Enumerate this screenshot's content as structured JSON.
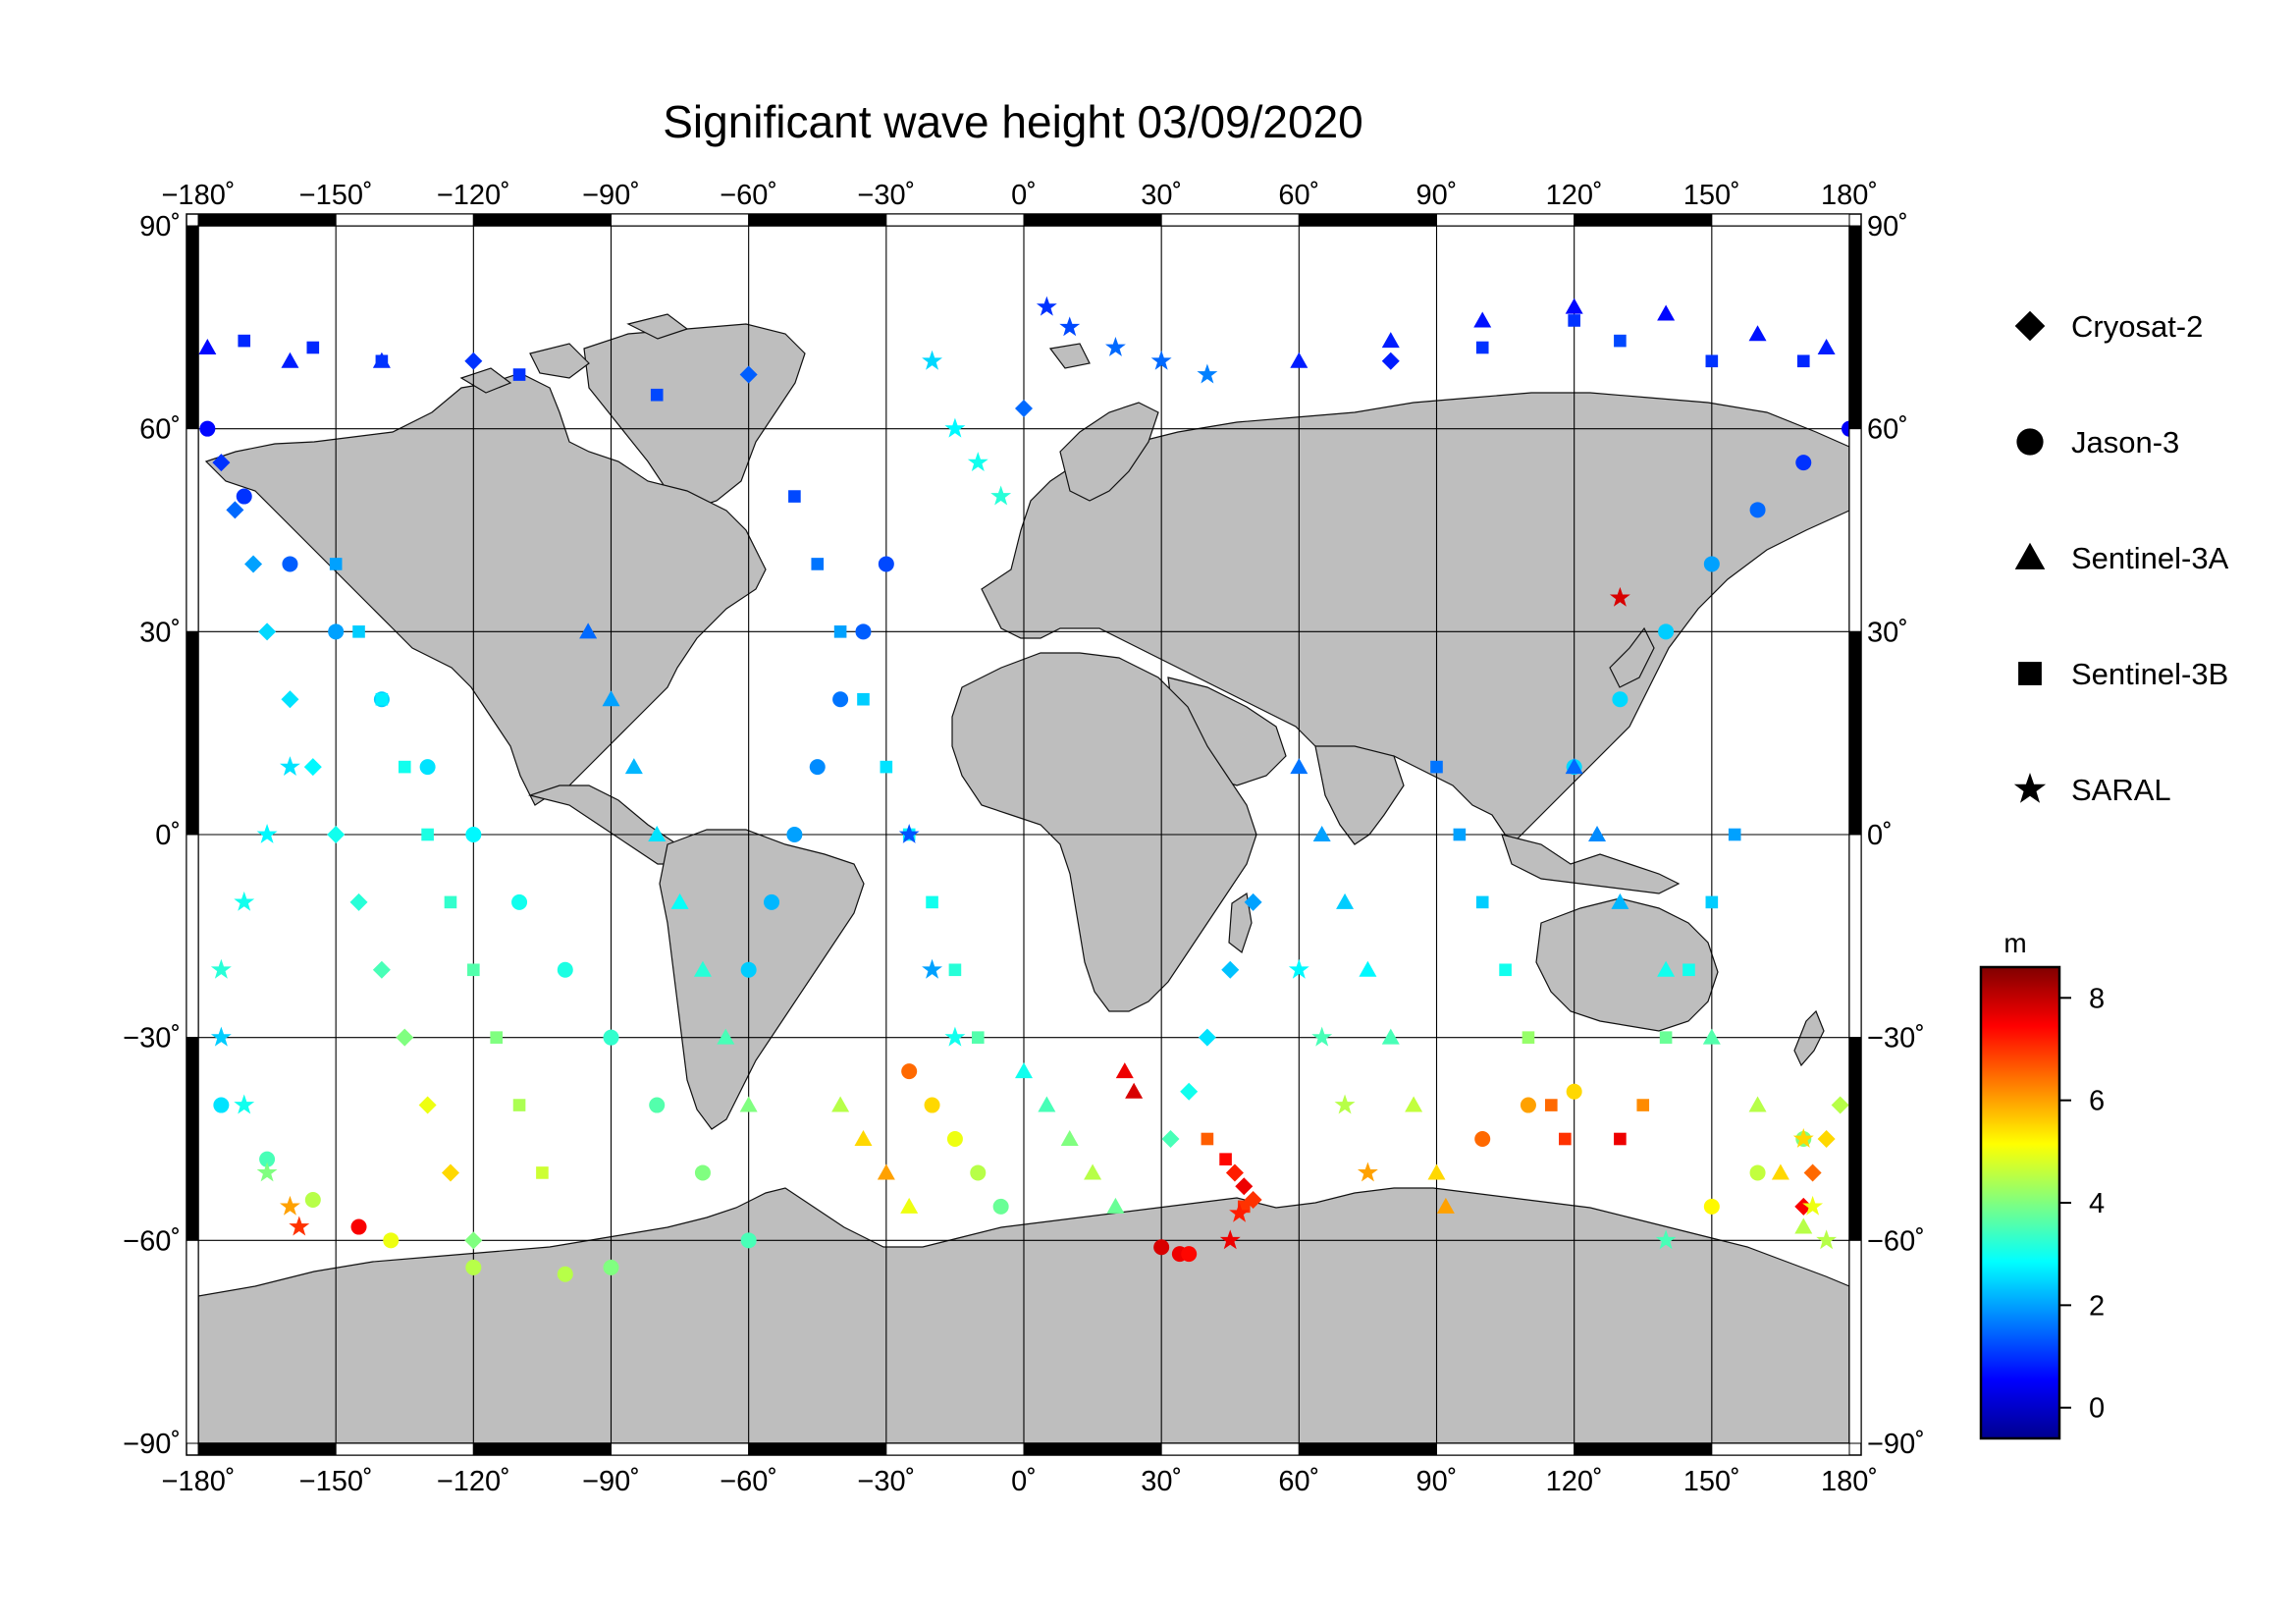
{
  "title": "Significant wave height 03/09/2020",
  "map": {
    "projection": "equirectangular",
    "lon_range": [
      -180,
      180
    ],
    "lat_range": [
      -90,
      90
    ],
    "lon_ticks": [
      -180,
      -150,
      -120,
      -90,
      -60,
      -30,
      0,
      30,
      60,
      90,
      120,
      150,
      180
    ],
    "lat_ticks": [
      90,
      60,
      30,
      0,
      -30,
      -60,
      -90
    ],
    "lon_tick_labels": [
      "−180˚",
      "−150˚",
      "−120˚",
      "−90˚",
      "−60˚",
      "−30˚",
      "0˚",
      "30˚",
      "60˚",
      "90˚",
      "120˚",
      "150˚",
      "180˚"
    ],
    "lat_tick_labels": [
      "90˚",
      "60˚",
      "30˚",
      "0˚",
      "−30˚",
      "−60˚",
      "−90˚"
    ],
    "grid": true,
    "land_color": "#bebebe",
    "ocean_color": "#ffffff",
    "frame_style": "alternating black/white 30-degree bands"
  },
  "legend": {
    "placement": "right",
    "items": [
      {
        "label": "Cryosat-2",
        "symbol": "diamond"
      },
      {
        "label": "Jason-3",
        "symbol": "circle"
      },
      {
        "label": "Sentinel-3A",
        "symbol": "triangle"
      },
      {
        "label": "Sentinel-3B",
        "symbol": "square"
      },
      {
        "label": "SARAL",
        "symbol": "star"
      }
    ]
  },
  "colorbar": {
    "unit": "m",
    "range": [
      -0.6,
      8.6
    ],
    "ticks": [
      0,
      2,
      4,
      6,
      8
    ],
    "tick_labels": [
      "0",
      "2",
      "4",
      "6",
      "8"
    ],
    "colormap": "jet",
    "placement": "right, bottom"
  },
  "chart_data": {
    "type": "scatter",
    "title": "Significant wave height 03/09/2020",
    "xlabel": "",
    "ylabel": "",
    "xlim": [
      -180,
      180
    ],
    "ylim": [
      -90,
      90
    ],
    "value_unit": "m",
    "color_scale": "jet",
    "series": [
      {
        "name": "Cryosat-2",
        "marker": "diamond",
        "points": [
          [
            -175,
            55,
            1.0
          ],
          [
            -172,
            48,
            1.5
          ],
          [
            -168,
            40,
            2.0
          ],
          [
            -165,
            30,
            2.5
          ],
          [
            -160,
            20,
            2.6
          ],
          [
            -155,
            10,
            2.8
          ],
          [
            -150,
            0,
            3.0
          ],
          [
            -145,
            -10,
            3.2
          ],
          [
            -140,
            -20,
            3.5
          ],
          [
            -135,
            -30,
            4.0
          ],
          [
            -130,
            -40,
            5.0
          ],
          [
            -125,
            -50,
            5.5
          ],
          [
            -120,
            -60,
            4.0
          ],
          [
            32,
            -45,
            3.5
          ],
          [
            36,
            -38,
            3.0
          ],
          [
            40,
            -30,
            2.6
          ],
          [
            45,
            -20,
            2.3
          ],
          [
            50,
            -10,
            2.0
          ],
          [
            46,
            -50,
            7.2
          ],
          [
            48,
            -52,
            7.6
          ],
          [
            50,
            -54,
            7.0
          ],
          [
            170,
            -55,
            7.5
          ],
          [
            172,
            -50,
            6.5
          ],
          [
            175,
            -45,
            5.5
          ],
          [
            178,
            -40,
            4.5
          ],
          [
            -120,
            70,
            1.0
          ],
          [
            -60,
            68,
            1.4
          ],
          [
            0,
            63,
            1.5
          ],
          [
            80,
            70,
            0.8
          ]
        ]
      },
      {
        "name": "Jason-3",
        "marker": "circle",
        "points": [
          [
            -178,
            60,
            0.6
          ],
          [
            -170,
            50,
            1.0
          ],
          [
            -160,
            40,
            1.4
          ],
          [
            -150,
            30,
            2.0
          ],
          [
            -140,
            20,
            2.4
          ],
          [
            -130,
            10,
            2.6
          ],
          [
            -120,
            0,
            2.8
          ],
          [
            -110,
            -10,
            3.0
          ],
          [
            -100,
            -20,
            3.1
          ],
          [
            -90,
            -30,
            3.3
          ],
          [
            -80,
            -40,
            3.6
          ],
          [
            -70,
            -50,
            4.0
          ],
          [
            -60,
            -60,
            3.5
          ],
          [
            -175,
            -40,
            2.6
          ],
          [
            -165,
            -48,
            3.5
          ],
          [
            -155,
            -54,
            4.5
          ],
          [
            -145,
            -58,
            7.5
          ],
          [
            -138,
            -60,
            5.0
          ],
          [
            -120,
            -64,
            4.5
          ],
          [
            -100,
            -65,
            4.5
          ],
          [
            -90,
            -64,
            4.0
          ],
          [
            -30,
            40,
            1.2
          ],
          [
            -35,
            30,
            1.4
          ],
          [
            -40,
            20,
            1.6
          ],
          [
            -45,
            10,
            1.8
          ],
          [
            -50,
            0,
            2.0
          ],
          [
            -55,
            -10,
            2.2
          ],
          [
            -60,
            -20,
            2.4
          ],
          [
            -25,
            -35,
            6.5
          ],
          [
            -20,
            -40,
            5.5
          ],
          [
            -15,
            -45,
            5.0
          ],
          [
            -10,
            -50,
            4.5
          ],
          [
            -5,
            -55,
            3.8
          ],
          [
            30,
            -61,
            7.8
          ],
          [
            34,
            -62,
            7.6
          ],
          [
            36,
            -62,
            7.4
          ],
          [
            180,
            60,
            0.5
          ],
          [
            170,
            55,
            1.0
          ],
          [
            160,
            48,
            1.5
          ],
          [
            150,
            40,
            2.0
          ],
          [
            140,
            30,
            2.4
          ],
          [
            130,
            20,
            2.5
          ],
          [
            120,
            10,
            2.5
          ],
          [
            100,
            -45,
            6.5
          ],
          [
            110,
            -40,
            6.0
          ],
          [
            120,
            -38,
            5.5
          ],
          [
            150,
            -55,
            5.2
          ],
          [
            160,
            -50,
            4.6
          ],
          [
            170,
            -45,
            4.0
          ]
        ]
      },
      {
        "name": "Sentinel-3A",
        "marker": "triangle",
        "points": [
          [
            -178,
            72,
            0.6
          ],
          [
            -160,
            70,
            0.8
          ],
          [
            -140,
            70,
            0.9
          ],
          [
            60,
            70,
            0.8
          ],
          [
            80,
            73,
            0.8
          ],
          [
            100,
            76,
            0.7
          ],
          [
            120,
            78,
            0.6
          ],
          [
            140,
            77,
            0.6
          ],
          [
            160,
            74,
            0.7
          ],
          [
            175,
            72,
            0.8
          ],
          [
            -95,
            30,
            1.5
          ],
          [
            -90,
            20,
            2.0
          ],
          [
            -85,
            10,
            2.2
          ],
          [
            -80,
            0,
            2.6
          ],
          [
            -75,
            -10,
            2.9
          ],
          [
            -70,
            -20,
            3.2
          ],
          [
            -65,
            -30,
            3.5
          ],
          [
            -60,
            -40,
            4.0
          ],
          [
            -40,
            -40,
            4.5
          ],
          [
            -35,
            -45,
            5.5
          ],
          [
            -30,
            -50,
            6.0
          ],
          [
            -25,
            -55,
            5.0
          ],
          [
            0,
            -35,
            3.0
          ],
          [
            5,
            -40,
            3.5
          ],
          [
            10,
            -45,
            4.0
          ],
          [
            15,
            -50,
            4.5
          ],
          [
            20,
            -55,
            3.8
          ],
          [
            60,
            10,
            1.6
          ],
          [
            65,
            0,
            2.0
          ],
          [
            70,
            -10,
            2.4
          ],
          [
            75,
            -20,
            2.8
          ],
          [
            80,
            -30,
            3.5
          ],
          [
            85,
            -40,
            4.6
          ],
          [
            90,
            -50,
            5.5
          ],
          [
            92,
            -55,
            6.0
          ],
          [
            120,
            10,
            1.5
          ],
          [
            125,
            0,
            1.8
          ],
          [
            130,
            -10,
            2.2
          ],
          [
            140,
            -20,
            3.0
          ],
          [
            150,
            -30,
            3.6
          ],
          [
            160,
            -40,
            4.5
          ],
          [
            165,
            -50,
            5.5
          ],
          [
            170,
            -58,
            4.5
          ],
          [
            22,
            -35,
            7.6
          ],
          [
            24,
            -38,
            7.8
          ]
        ]
      },
      {
        "name": "Sentinel-3B",
        "marker": "square",
        "points": [
          [
            -170,
            73,
            0.9
          ],
          [
            -155,
            72,
            0.9
          ],
          [
            -140,
            70,
            1.0
          ],
          [
            -110,
            68,
            1.0
          ],
          [
            -80,
            65,
            1.2
          ],
          [
            100,
            72,
            1.0
          ],
          [
            120,
            76,
            1.0
          ],
          [
            130,
            73,
            1.2
          ],
          [
            150,
            70,
            1.0
          ],
          [
            170,
            70,
            0.9
          ],
          [
            -150,
            40,
            2.0
          ],
          [
            -145,
            30,
            2.4
          ],
          [
            -140,
            20,
            2.7
          ],
          [
            -135,
            10,
            3.0
          ],
          [
            -130,
            0,
            3.1
          ],
          [
            -125,
            -10,
            3.3
          ],
          [
            -120,
            -20,
            3.6
          ],
          [
            -115,
            -30,
            4.0
          ],
          [
            -110,
            -40,
            4.4
          ],
          [
            -105,
            -50,
            4.7
          ],
          [
            -50,
            50,
            1.2
          ],
          [
            -45,
            40,
            1.6
          ],
          [
            -40,
            30,
            2.0
          ],
          [
            -35,
            20,
            2.4
          ],
          [
            -30,
            10,
            2.6
          ],
          [
            -25,
            0,
            2.8
          ],
          [
            -20,
            -10,
            3.0
          ],
          [
            -15,
            -20,
            3.2
          ],
          [
            -10,
            -30,
            3.6
          ],
          [
            40,
            -45,
            6.6
          ],
          [
            44,
            -48,
            7.4
          ],
          [
            48,
            -55,
            7.0
          ],
          [
            90,
            10,
            1.6
          ],
          [
            95,
            0,
            2.0
          ],
          [
            100,
            -10,
            2.4
          ],
          [
            105,
            -20,
            3.0
          ],
          [
            110,
            -30,
            4.2
          ],
          [
            115,
            -40,
            6.5
          ],
          [
            118,
            -45,
            7.0
          ],
          [
            130,
            -45,
            7.6
          ],
          [
            135,
            -40,
            6.2
          ],
          [
            140,
            -30,
            3.8
          ],
          [
            145,
            -20,
            3.0
          ],
          [
            150,
            -10,
            2.4
          ],
          [
            155,
            0,
            2.0
          ]
        ]
      },
      {
        "name": "SARAL",
        "marker": "star",
        "points": [
          [
            -175,
            -30,
            2.4
          ],
          [
            -170,
            -40,
            3.0
          ],
          [
            -165,
            -50,
            4.0
          ],
          [
            -160,
            -55,
            6.0
          ],
          [
            -158,
            -58,
            7.0
          ],
          [
            -160,
            10,
            2.6
          ],
          [
            -165,
            0,
            2.8
          ],
          [
            -170,
            -10,
            3.0
          ],
          [
            -175,
            -20,
            3.2
          ],
          [
            5,
            78,
            1.0
          ],
          [
            10,
            75,
            1.2
          ],
          [
            20,
            72,
            1.5
          ],
          [
            30,
            70,
            1.5
          ],
          [
            40,
            68,
            1.7
          ],
          [
            -20,
            70,
            2.5
          ],
          [
            -15,
            60,
            2.8
          ],
          [
            -10,
            55,
            3.0
          ],
          [
            -5,
            50,
            3.2
          ],
          [
            -25,
            0,
            1.3
          ],
          [
            -20,
            -20,
            2.0
          ],
          [
            -15,
            -30,
            3.0
          ],
          [
            45,
            -60,
            7.6
          ],
          [
            47,
            -56,
            7.2
          ],
          [
            60,
            -20,
            2.8
          ],
          [
            65,
            -30,
            3.5
          ],
          [
            70,
            -40,
            4.5
          ],
          [
            75,
            -50,
            6.0
          ],
          [
            170,
            -45,
            5.5
          ],
          [
            172,
            -55,
            5.0
          ],
          [
            175,
            -60,
            4.5
          ],
          [
            130,
            35,
            7.8
          ],
          [
            140,
            -60,
            3.5
          ]
        ]
      }
    ]
  }
}
